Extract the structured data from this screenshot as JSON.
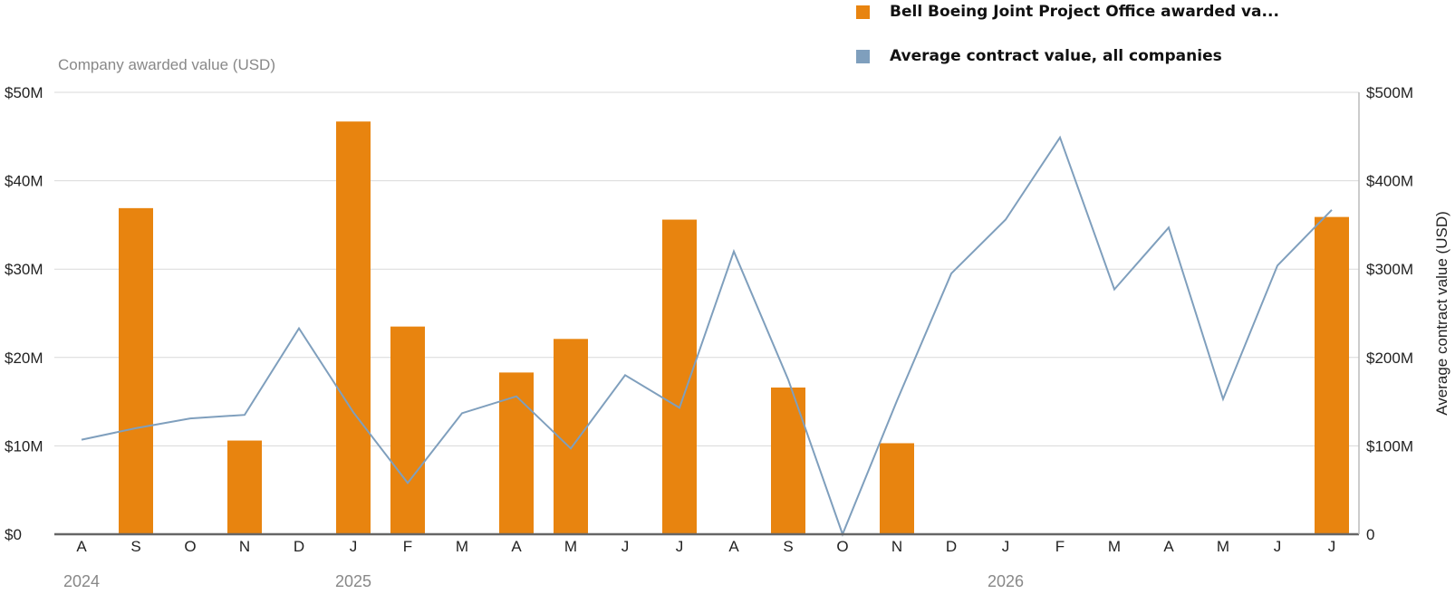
{
  "chart_data": {
    "type": "bar+line",
    "title": "",
    "y_left_label": "Company awarded value (USD)",
    "y_right_label": "Average contract value (USD)",
    "y_left_range": [
      0,
      50
    ],
    "y_right_range": [
      0,
      500
    ],
    "y_left_ticks": [
      "$0",
      "$10M",
      "$20M",
      "$30M",
      "$40M",
      "$50M"
    ],
    "y_right_ticks": [
      "0",
      "$100M",
      "$200M",
      "$300M",
      "$400M",
      "$500M"
    ],
    "x_ticks": [
      "A",
      "S",
      "O",
      "N",
      "D",
      "J",
      "F",
      "M",
      "A",
      "M",
      "J",
      "J",
      "A",
      "S",
      "O",
      "N",
      "D",
      "J",
      "F",
      "M",
      "A",
      "M",
      "J",
      "J"
    ],
    "year_labels": [
      {
        "label": "2024",
        "index": 0
      },
      {
        "label": "2025",
        "index": 5
      },
      {
        "label": "2026",
        "index": 17
      }
    ],
    "categories": [
      "2024-08",
      "2024-09",
      "2024-10",
      "2024-11",
      "2024-12",
      "2025-01",
      "2025-02",
      "2025-03",
      "2025-04",
      "2025-05",
      "2025-06",
      "2025-07",
      "2025-08",
      "2025-09",
      "2025-10",
      "2025-11",
      "2025-12",
      "2026-01",
      "2026-02",
      "2026-03",
      "2026-04",
      "2026-05",
      "2026-06",
      "2026-07"
    ],
    "series": [
      {
        "name": "Bell Boeing Joint Project Office awarded va...",
        "type": "bar",
        "axis": "left",
        "unit": "USD millions",
        "color": "#e8840f",
        "values": [
          0,
          36.9,
          0,
          10.6,
          0,
          46.7,
          23.5,
          0,
          18.3,
          22.1,
          0,
          35.6,
          0,
          16.6,
          0,
          10.3,
          0,
          0,
          0,
          0,
          0,
          0,
          0,
          35.9
        ]
      },
      {
        "name": "Average contract value, all companies",
        "type": "line",
        "axis": "right",
        "unit": "USD millions",
        "color": "#7f9fbd",
        "values": [
          107,
          120,
          131,
          135,
          233,
          138,
          58,
          137,
          156,
          97,
          180,
          143,
          320,
          175,
          0,
          151,
          295,
          356,
          449,
          277,
          347,
          153,
          304,
          367
        ]
      }
    ],
    "grid": true,
    "legend_position": "top-right"
  }
}
